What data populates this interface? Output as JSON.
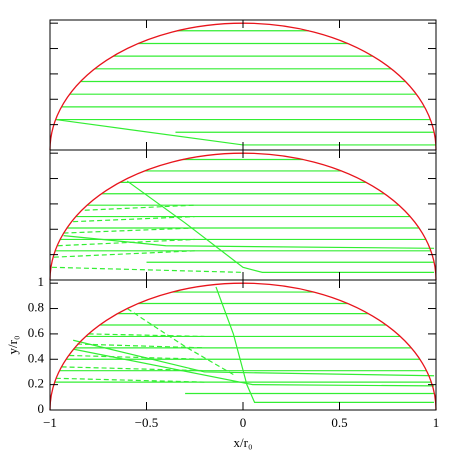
{
  "chart_data": [
    {
      "type": "line",
      "xlim": [
        -1,
        1
      ],
      "ylim": [
        0,
        1.025
      ],
      "xticks": [
        -1,
        -0.5,
        0,
        0.5,
        1
      ],
      "yticks": [
        0,
        0.2,
        0.4,
        0.6,
        0.8,
        1
      ],
      "tick_labels": false,
      "series": [
        {
          "color": "#33ee33",
          "dash": false,
          "x": [
            -0.341,
            0.341
          ],
          "y": [
            0.94,
            0.94
          ]
        },
        {
          "color": "#33ee33",
          "dash": false,
          "x": [
            -0.543,
            0.543
          ],
          "y": [
            0.84,
            0.84
          ]
        },
        {
          "color": "#33ee33",
          "dash": false,
          "x": [
            -0.673,
            0.673
          ],
          "y": [
            0.74,
            0.74
          ]
        },
        {
          "color": "#33ee33",
          "dash": false,
          "x": [
            -0.768,
            0.768
          ],
          "y": [
            0.64,
            0.64
          ]
        },
        {
          "color": "#33ee33",
          "dash": false,
          "x": [
            -0.842,
            0.842
          ],
          "y": [
            0.54,
            0.54
          ]
        },
        {
          "color": "#33ee33",
          "dash": false,
          "x": [
            -0.898,
            0.898
          ],
          "y": [
            0.44,
            0.44
          ]
        },
        {
          "color": "#33ee33",
          "dash": false,
          "x": [
            -0.94,
            0.94
          ],
          "y": [
            0.34,
            0.34
          ]
        },
        {
          "color": "#33ee33",
          "dash": false,
          "x": [
            -0.971,
            0.971
          ],
          "y": [
            0.24,
            0.24
          ]
        },
        {
          "color": "#33ee33",
          "dash": false,
          "x": [
            -0.35,
            0.99
          ],
          "y": [
            0.14,
            0.14
          ]
        },
        {
          "color": "#33ee33",
          "dash": false,
          "x": [
            -0.97,
            0,
            0.999
          ],
          "y": [
            0.24,
            0.04,
            0.04
          ]
        }
      ]
    },
    {
      "type": "line",
      "xlim": [
        -1,
        1
      ],
      "ylim": [
        0,
        1.025
      ],
      "xticks": [
        -1,
        -0.5,
        0,
        0.5,
        1
      ],
      "yticks": [
        0,
        0.2,
        0.4,
        0.6,
        0.8,
        1
      ],
      "tick_labels": false,
      "series": [
        {
          "color": "#33ee33",
          "dash": false,
          "x": [
            -0.312,
            0.312
          ],
          "y": [
            0.95,
            0.95
          ]
        },
        {
          "color": "#33ee33",
          "dash": false,
          "x": [
            -0.51,
            0.51
          ],
          "y": [
            0.86,
            0.86
          ]
        },
        {
          "color": "#33ee33",
          "dash": false,
          "x": [
            -0.638,
            0.638
          ],
          "y": [
            0.77,
            0.77
          ]
        },
        {
          "color": "#33ee33",
          "dash": false,
          "x": [
            -0.733,
            0.733
          ],
          "y": [
            0.68,
            0.68
          ]
        },
        {
          "color": "#33ee33",
          "dash": false,
          "x": [
            -0.807,
            0.807
          ],
          "y": [
            0.59,
            0.59
          ]
        },
        {
          "color": "#33ee33",
          "dash": false,
          "x": [
            -0.866,
            0.866
          ],
          "y": [
            0.5,
            0.5
          ]
        },
        {
          "color": "#33ee33",
          "dash": false,
          "x": [
            -0.912,
            0.912
          ],
          "y": [
            0.41,
            0.41
          ]
        },
        {
          "color": "#33ee33",
          "dash": false,
          "x": [
            -0.947,
            0.947
          ],
          "y": [
            0.32,
            0.32
          ]
        },
        {
          "color": "#33ee33",
          "dash": false,
          "x": [
            -0.973,
            0.973
          ],
          "y": [
            0.23,
            0.23
          ]
        },
        {
          "color": "#33ee33",
          "dash": false,
          "x": [
            -0.5,
            0.99
          ],
          "y": [
            0.14,
            0.14
          ]
        },
        {
          "color": "#33ee33",
          "dash": true,
          "x": [
            -0.82,
            -0.25
          ],
          "y": [
            0.55,
            0.59
          ]
        },
        {
          "color": "#33ee33",
          "dash": true,
          "x": [
            -0.88,
            -0.25
          ],
          "y": [
            0.46,
            0.5
          ]
        },
        {
          "color": "#33ee33",
          "dash": true,
          "x": [
            -0.93,
            -0.25
          ],
          "y": [
            0.37,
            0.41
          ]
        },
        {
          "color": "#33ee33",
          "dash": true,
          "x": [
            -0.96,
            -0.25
          ],
          "y": [
            0.27,
            0.32
          ]
        },
        {
          "color": "#33ee33",
          "dash": true,
          "x": [
            -0.98,
            -0.25
          ],
          "y": [
            0.18,
            0.23
          ]
        },
        {
          "color": "#33ee33",
          "dash": true,
          "x": [
            -0.99,
            0
          ],
          "y": [
            0.1,
            0.06
          ]
        },
        {
          "color": "#33ee33",
          "dash": false,
          "x": [
            -0.6,
            -0.3,
            0,
            0.1,
            0.99
          ],
          "y": [
            0.78,
            0.45,
            0.1,
            0.06,
            0.06
          ]
        },
        {
          "color": "#33ee33",
          "dash": false,
          "x": [
            -0.93,
            -0.4,
            0.99
          ],
          "y": [
            0.35,
            0.27,
            0.25
          ]
        }
      ]
    },
    {
      "type": "line",
      "xlim": [
        -1,
        1
      ],
      "ylim": [
        0,
        1.025
      ],
      "xticks": [
        {
          "value": -1,
          "label": "−1"
        },
        {
          "value": -0.5,
          "label": "−0.5"
        },
        0,
        0.5,
        1
      ],
      "yticks": [
        0,
        0.2,
        0.4,
        0.6,
        0.8,
        1
      ],
      "tick_labels": true,
      "xlabel": "x/r₀",
      "ylabel": "y/r₀",
      "series": [
        {
          "color": "#33ee33",
          "dash": false,
          "x": [
            -0.368,
            0.368
          ],
          "y": [
            0.93,
            0.93
          ]
        },
        {
          "color": "#33ee33",
          "dash": false,
          "x": [
            -0.543,
            0.543
          ],
          "y": [
            0.84,
            0.84
          ]
        },
        {
          "color": "#33ee33",
          "dash": false,
          "x": [
            -0.65,
            0.65
          ],
          "y": [
            0.76,
            0.76
          ]
        },
        {
          "color": "#33ee33",
          "dash": false,
          "x": [
            -0.742,
            0.742
          ],
          "y": [
            0.67,
            0.67
          ]
        },
        {
          "color": "#33ee33",
          "dash": false,
          "x": [
            -0.815,
            0.815
          ],
          "y": [
            0.58,
            0.58
          ]
        },
        {
          "color": "#33ee33",
          "dash": false,
          "x": [
            -0.872,
            0.872
          ],
          "y": [
            0.49,
            0.49
          ]
        },
        {
          "color": "#33ee33",
          "dash": false,
          "x": [
            -0.917,
            0.917
          ],
          "y": [
            0.4,
            0.4
          ]
        },
        {
          "color": "#33ee33",
          "dash": false,
          "x": [
            -0.951,
            0.951
          ],
          "y": [
            0.31,
            0.31
          ]
        },
        {
          "color": "#33ee33",
          "dash": false,
          "x": [
            -0.975,
            0.975
          ],
          "y": [
            0.22,
            0.22
          ]
        },
        {
          "color": "#33ee33",
          "dash": false,
          "x": [
            -0.3,
            0.991
          ],
          "y": [
            0.13,
            0.13
          ]
        },
        {
          "color": "#33ee33",
          "dash": true,
          "x": [
            -0.8,
            -0.2
          ],
          "y": [
            0.6,
            0.58
          ]
        },
        {
          "color": "#33ee33",
          "dash": true,
          "x": [
            -0.86,
            -0.2
          ],
          "y": [
            0.52,
            0.49
          ]
        },
        {
          "color": "#33ee33",
          "dash": true,
          "x": [
            -0.9,
            -0.2
          ],
          "y": [
            0.43,
            0.4
          ]
        },
        {
          "color": "#33ee33",
          "dash": true,
          "x": [
            -0.94,
            -0.2
          ],
          "y": [
            0.34,
            0.31
          ]
        },
        {
          "color": "#33ee33",
          "dash": true,
          "x": [
            -0.97,
            -0.2
          ],
          "y": [
            0.25,
            0.22
          ]
        },
        {
          "color": "#33ee33",
          "dash": true,
          "x": [
            -0.6,
            -0.3,
            -0.05
          ],
          "y": [
            0.8,
            0.5,
            0.28
          ]
        },
        {
          "color": "#33ee33",
          "dash": false,
          "x": [
            -0.14,
            -0.05,
            0.02,
            0.06,
            0.99
          ],
          "y": [
            0.97,
            0.6,
            0.2,
            0.06,
            0.06
          ]
        },
        {
          "color": "#33ee33",
          "dash": false,
          "x": [
            -0.88,
            -0.2,
            0.99
          ],
          "y": [
            0.55,
            0.3,
            0.27
          ]
        },
        {
          "color": "#33ee33",
          "dash": false,
          "x": [
            -0.88,
            0.05,
            0.99
          ],
          "y": [
            0.48,
            0.2,
            0.19
          ]
        }
      ]
    }
  ]
}
